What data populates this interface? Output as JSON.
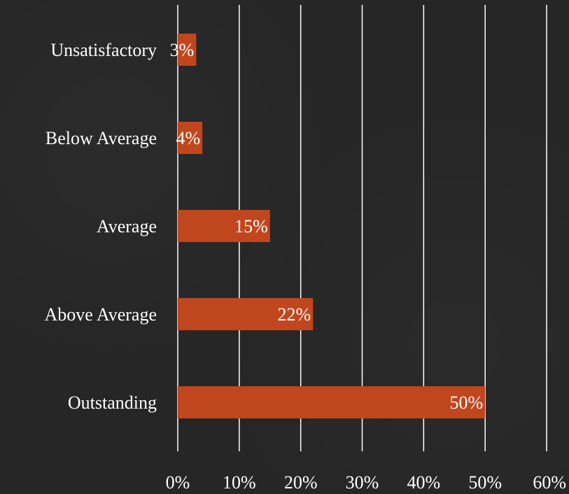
{
  "chart_data": {
    "type": "bar",
    "orientation": "horizontal",
    "title": "",
    "xlabel": "",
    "ylabel": "",
    "categories": [
      "Unsatisfactory",
      "Below Average",
      "Average",
      "Above Average",
      "Outstanding"
    ],
    "values": [
      3,
      4,
      15,
      22,
      50
    ],
    "data_labels": [
      "3%",
      "4%",
      "15%",
      "22%",
      "50%"
    ],
    "xlim": [
      0,
      60
    ],
    "x_ticks": [
      0,
      10,
      20,
      30,
      40,
      50,
      60
    ],
    "x_tick_labels": [
      "0%",
      "10%",
      "20%",
      "30%",
      "40%",
      "50%",
      "60%"
    ],
    "grid": "vertical",
    "legend": "none",
    "colors": {
      "bar": "#c0461e",
      "grid": "#ffffff",
      "text": "#ffffff",
      "background": "#262626"
    }
  }
}
